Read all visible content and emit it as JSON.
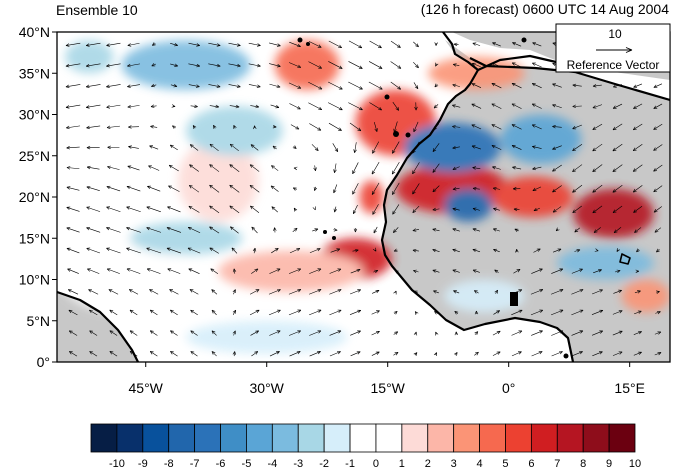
{
  "header": {
    "left_title": "Ensemble 10",
    "right_title": "(126 h forecast) 0600 UTC 14 Aug 2004"
  },
  "map": {
    "lat_range": [
      0,
      40
    ],
    "lon_range": [
      -56,
      20
    ],
    "lat_ticks": [
      {
        "value": 40,
        "label": "40°N"
      },
      {
        "value": 35,
        "label": "35°N"
      },
      {
        "value": 30,
        "label": "30°N"
      },
      {
        "value": 25,
        "label": "25°N"
      },
      {
        "value": 20,
        "label": "20°N"
      },
      {
        "value": 15,
        "label": "15°N"
      },
      {
        "value": 10,
        "label": "10°N"
      },
      {
        "value": 5,
        "label": "5°N"
      },
      {
        "value": 0,
        "label": "0°"
      }
    ],
    "lon_ticks": [
      {
        "value": -45,
        "label": "45°W"
      },
      {
        "value": -30,
        "label": "30°W"
      },
      {
        "value": -15,
        "label": "15°W"
      },
      {
        "value": 0,
        "label": "0°"
      },
      {
        "value": 15,
        "label": "15°E"
      }
    ],
    "land_color": "#c8c8c8",
    "coast_color": "#000000",
    "anomaly_blobs": [
      {
        "lon": -14,
        "lat": 29,
        "rlon": 5,
        "rlat": 4,
        "level": 6
      },
      {
        "lon": -7,
        "lat": 21,
        "rlon": 7,
        "rlat": 3,
        "level": 7
      },
      {
        "lon": 13,
        "lat": 18,
        "rlon": 5,
        "rlat": 3,
        "level": 8
      },
      {
        "lon": 3,
        "lat": 20,
        "rlon": 5,
        "rlat": 2.5,
        "level": 6
      },
      {
        "lon": -19,
        "lat": 12.5,
        "rlon": 4.5,
        "rlat": 2.5,
        "level": 7
      },
      {
        "lon": -27,
        "lat": 11,
        "rlon": 9,
        "rlat": 2.5,
        "level": 3
      },
      {
        "lon": -25,
        "lat": 36,
        "rlon": 4,
        "rlat": 3,
        "level": 5
      },
      {
        "lon": -4,
        "lat": 35,
        "rlon": 6,
        "rlat": 2,
        "level": 4
      },
      {
        "lon": -17,
        "lat": 20,
        "rlon": 1.5,
        "rlat": 2,
        "level": 6
      },
      {
        "lon": -48,
        "lat": 11,
        "rlon": 8,
        "rlat": 5,
        "level": 1
      },
      {
        "lon": 17,
        "lat": 8,
        "rlon": 3,
        "rlat": 2,
        "level": 4
      },
      {
        "lon": -36,
        "lat": 22,
        "rlon": 5,
        "rlat": 5,
        "level": 2
      },
      {
        "lon": -7,
        "lat": 26,
        "rlon": 6,
        "rlat": 3,
        "level": -6
      },
      {
        "lon": -5,
        "lat": 19,
        "rlon": 3,
        "rlat": 2,
        "level": -7
      },
      {
        "lon": 4,
        "lat": 27,
        "rlon": 5,
        "rlat": 3,
        "level": -4
      },
      {
        "lon": -40,
        "lat": 36,
        "rlon": 8,
        "rlat": 3,
        "level": -3
      },
      {
        "lon": -52,
        "lat": 37,
        "rlon": 3,
        "rlat": 2,
        "level": -2
      },
      {
        "lon": -40,
        "lat": 15,
        "rlon": 7,
        "rlat": 2,
        "level": -2
      },
      {
        "lon": -34,
        "lat": 28,
        "rlon": 6,
        "rlat": 3,
        "level": -2
      },
      {
        "lon": 12,
        "lat": 12,
        "rlon": 6,
        "rlat": 2,
        "level": -3
      },
      {
        "lon": -3,
        "lat": 8,
        "rlon": 5,
        "rlat": 2,
        "level": -1
      },
      {
        "lon": -30,
        "lat": 3,
        "rlon": 10,
        "rlat": 2,
        "level": -1
      }
    ],
    "wind_field": [
      {
        "lon": -52,
        "lat": 35,
        "u": -6,
        "v": -1
      },
      {
        "lon": -35,
        "lat": 36,
        "u": 5,
        "v": -1
      },
      {
        "lon": -20,
        "lat": 32,
        "u": 6,
        "v": -3
      },
      {
        "lon": -35,
        "lat": 22,
        "u": -4,
        "v": 3
      },
      {
        "lon": -15,
        "lat": 24,
        "u": -3,
        "v": -5
      },
      {
        "lon": -45,
        "lat": 15,
        "u": -6,
        "v": 2
      },
      {
        "lon": -25,
        "lat": 8,
        "u": 5,
        "v": 2
      },
      {
        "lon": -45,
        "lat": 4,
        "u": -3,
        "v": 2
      },
      {
        "lon": 0,
        "lat": 30,
        "u": -4,
        "v": 2
      },
      {
        "lon": 10,
        "lat": 22,
        "u": -4,
        "v": -3
      },
      {
        "lon": -5,
        "lat": 14,
        "u": -3,
        "v": 1
      },
      {
        "lon": 5,
        "lat": 8,
        "u": 5,
        "v": 2
      }
    ],
    "reference_vector": {
      "value": "10",
      "label": "Reference Vector"
    }
  },
  "colorbar": {
    "levels": [
      -10,
      -9,
      -8,
      -7,
      -6,
      -5,
      -4,
      -3,
      -2,
      -1,
      0,
      1,
      2,
      3,
      4,
      5,
      6,
      7,
      8,
      9,
      10
    ],
    "labels": [
      "-10",
      "-9",
      "-8",
      "-7",
      "-6",
      "-5",
      "-4",
      "-3",
      "-2",
      "-1",
      "0",
      "1",
      "2",
      "3",
      "4",
      "5",
      "6",
      "7",
      "8",
      "9",
      "10"
    ],
    "colors": [
      "#061e45",
      "#08306b",
      "#08519c",
      "#2166ac",
      "#2b72b8",
      "#3f8ec6",
      "#5aa5d6",
      "#7bbbdf",
      "#a8d7e6",
      "#d6eefa",
      "#ffffff",
      "#ffffff",
      "#fddbd7",
      "#fcb6a8",
      "#fb9476",
      "#f6694f",
      "#ec4131",
      "#d01e21",
      "#b51522",
      "#8e0d1b",
      "#6b0010"
    ]
  }
}
